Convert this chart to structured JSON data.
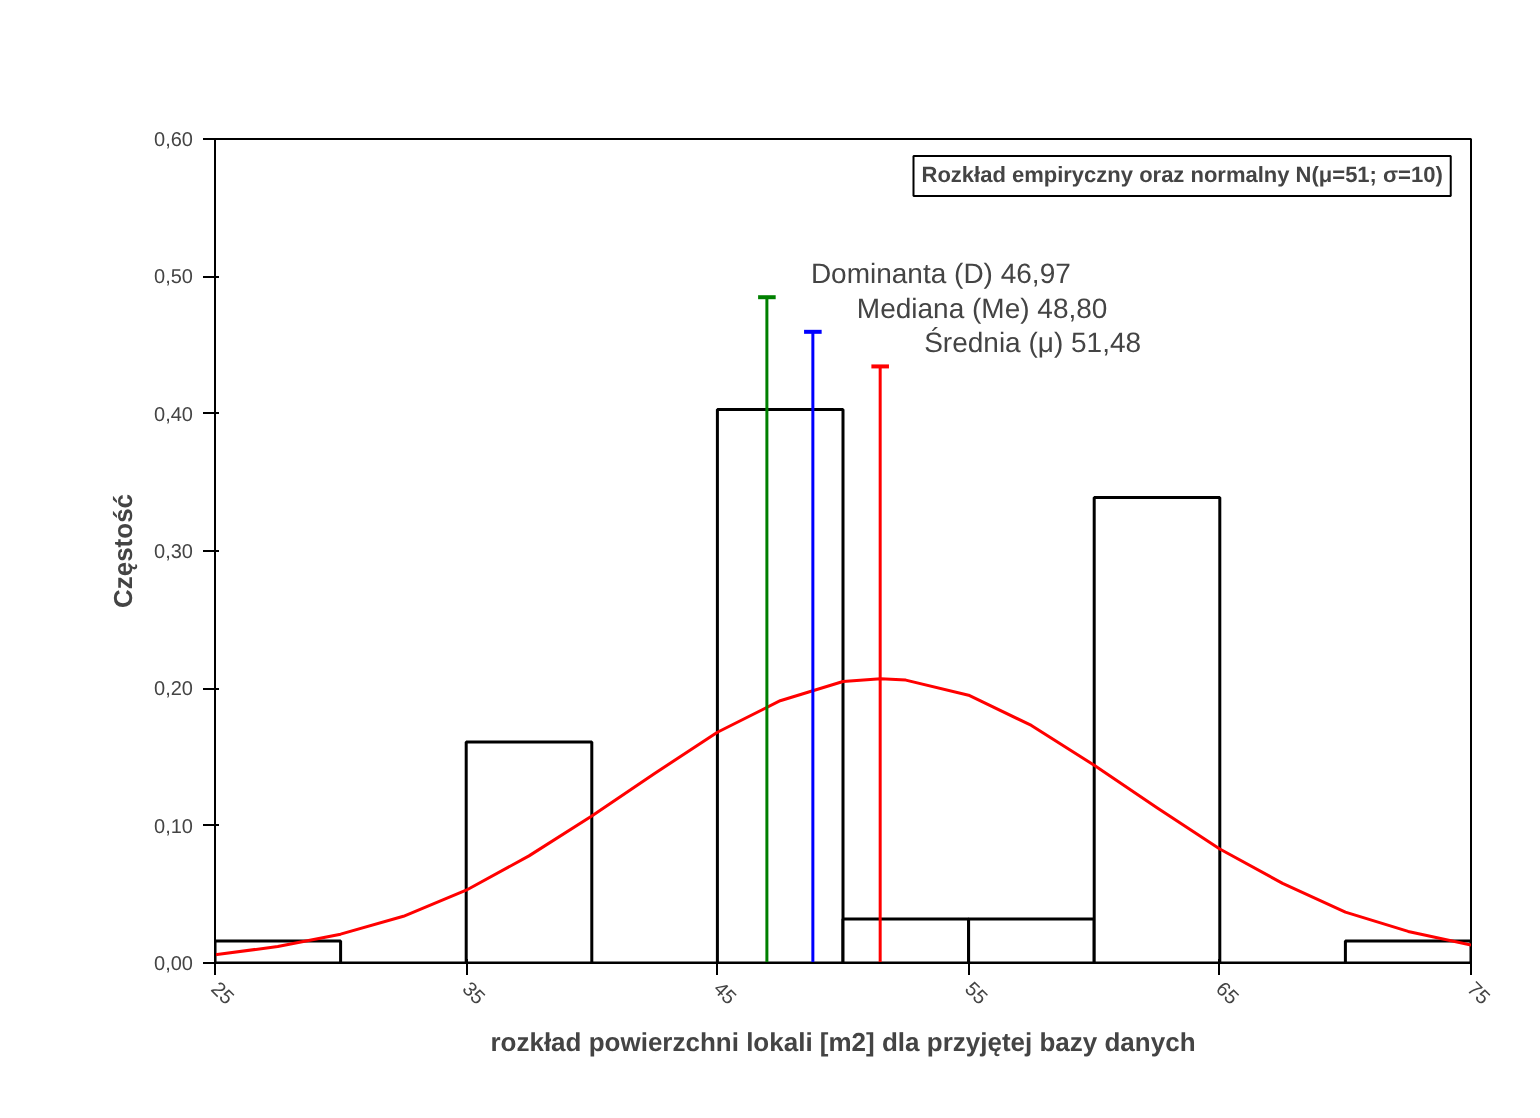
{
  "chart_data": {
    "type": "histogram",
    "title": "Rozkład empiryczny oraz normalny N(μ=51; σ=10)",
    "xlabel": "rozkład powierzchni lokali [m2] dla przyjętej bazy danych",
    "ylabel": "Częstość",
    "bins": [
      25,
      30,
      35,
      40,
      45,
      50,
      55,
      60,
      65,
      70,
      75
    ],
    "values": [
      0.016,
      0,
      0.161,
      0,
      0.403,
      0.032,
      0.032,
      0.339,
      0,
      0.016
    ],
    "color": "#000000",
    "series": [
      {
        "type": "line",
        "color": "#ff0000",
        "x": [
          25,
          27.5,
          30,
          32.5,
          35,
          37.5,
          40,
          42.5,
          45,
          47.5,
          50,
          51.5,
          52.5,
          55,
          57.5,
          60,
          62.5,
          65,
          67.5,
          70,
          72.5,
          75
        ],
        "values": [
          0.006,
          0.012,
          0.021,
          0.034,
          0.053,
          0.078,
          0.107,
          0.138,
          0.168,
          0.191,
          0.205,
          0.207,
          0.206,
          0.195,
          0.173,
          0.144,
          0.113,
          0.083,
          0.058,
          0.037,
          0.023,
          0.013
        ]
      }
    ],
    "ref_lines": [
      {
        "axis": "x",
        "value": 46.97,
        "label": "Dominanta (D) 46,97",
        "color": "#008000"
      },
      {
        "axis": "x",
        "value": 48.8,
        "label": "Mediana (Me) 48,80",
        "color": "#0000ff"
      },
      {
        "axis": "x",
        "value": 51.48,
        "label": "Średnia (μ) 51,48",
        "color": "#ff0000"
      }
    ],
    "xlim": [
      25,
      75
    ],
    "xticks": [
      25,
      35,
      45,
      55,
      65,
      75
    ],
    "ylim": [
      0,
      0.6
    ],
    "yticks": [
      {
        "value": 0,
        "label": "0,00"
      },
      {
        "value": 0.1,
        "label": "0,10"
      },
      {
        "value": 0.2,
        "label": "0,20"
      },
      {
        "value": 0.3,
        "label": "0,30"
      },
      {
        "value": 0.4,
        "label": "0,40"
      },
      {
        "value": 0.5,
        "label": "0,50"
      },
      {
        "value": 0.6,
        "label": "0,60"
      }
    ],
    "grid": false
  }
}
